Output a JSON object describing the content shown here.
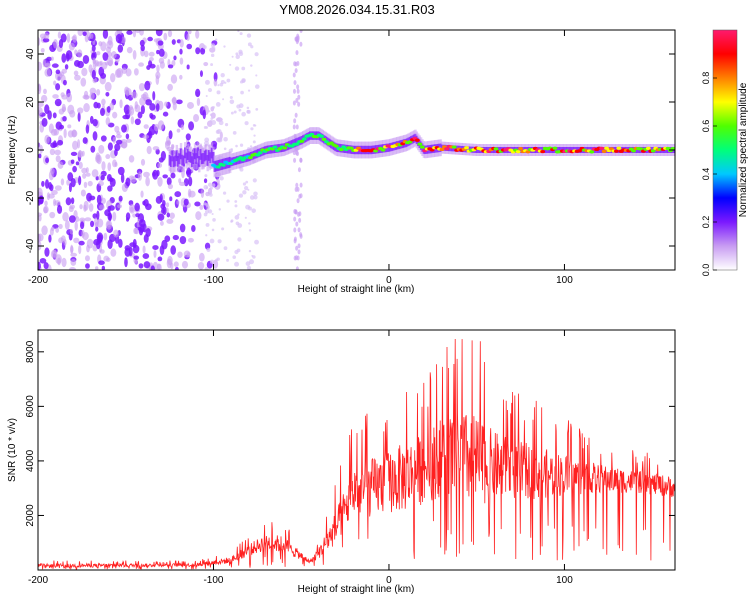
{
  "figure_title": "YM08.2026.034.15.31.R03",
  "colorbar": {
    "label": "Normalized spectral amplitude",
    "ticks": [
      "0.0",
      "0.2",
      "0.4",
      "0.6",
      "0.8"
    ],
    "colors": [
      "#ffffff",
      "#c89cf2",
      "#7b19ff",
      "#0000ff",
      "#00c8ff",
      "#00ff7a",
      "#50ff00",
      "#ffff00",
      "#ff8000",
      "#ff0000",
      "#ff1a6e"
    ]
  },
  "chart_data": [
    {
      "type": "heatmap",
      "title": "",
      "xlabel": "Height of straight line (km)",
      "ylabel": "Frequency (Hz)",
      "xlim": [
        -200,
        163
      ],
      "ylim": [
        -50,
        50
      ],
      "xticks": [
        "-200",
        "-100",
        "0",
        "100"
      ],
      "yticks": [
        "-40",
        "-20",
        "0",
        "20",
        "40"
      ],
      "ridge_frequency_track": {
        "x": [
          -100,
          -90,
          -80,
          -70,
          -60,
          -50,
          -45,
          -40,
          -30,
          -20,
          -10,
          0,
          10,
          15,
          20,
          30,
          50,
          70,
          100,
          130,
          163
        ],
        "y": [
          -7,
          -5,
          -3,
          0,
          1,
          4,
          6,
          6,
          1,
          0,
          0,
          1,
          3,
          5,
          0,
          1,
          0,
          0,
          0,
          0,
          0
        ]
      },
      "noise_region_x": [
        -200,
        -100
      ]
    },
    {
      "type": "line",
      "title": "",
      "xlabel": "Height of straight line (km)",
      "ylabel": "SNR (10 * v/v)",
      "xlim": [
        -200,
        163
      ],
      "ylim": [
        0,
        8800
      ],
      "xticks": [
        "-200",
        "-100",
        "0",
        "100"
      ],
      "yticks": [
        "2000",
        "4000",
        "6000",
        "8000"
      ],
      "series": [
        {
          "name": "SNR",
          "color": "#ff2020",
          "envelope": {
            "x": [
              -200,
              -110,
              -90,
              -80,
              -70,
              -60,
              -50,
              -45,
              -40,
              -30,
              -20,
              -10,
              0,
              10,
              20,
              30,
              40,
              50,
              60,
              80,
              100,
              120,
              140,
              163
            ],
            "mean": [
              150,
              180,
              350,
              700,
              1000,
              900,
              500,
              300,
              600,
              1500,
              2800,
              2900,
              3100,
              3300,
              3600,
              4000,
              4000,
              3800,
              3700,
              3500,
              3400,
              3300,
              3200,
              3000
            ],
            "peak": [
              350,
              350,
              700,
              1300,
              1900,
              1800,
              900,
              500,
              1200,
              3300,
              5600,
              6000,
              6400,
              7000,
              7300,
              8200,
              8800,
              8700,
              7300,
              6400,
              5600,
              4800,
              4400,
              4100
            ]
          }
        }
      ]
    }
  ]
}
